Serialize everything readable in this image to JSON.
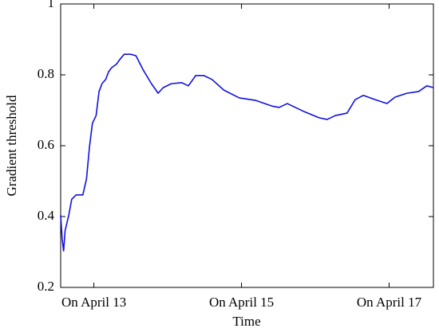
{
  "chart_data": {
    "type": "line",
    "x_label": "Time",
    "y_label": "Gradient threshold",
    "xlim": [
      12.55,
      17.6
    ],
    "xticks": [
      {
        "value": 13,
        "label": "On April 13"
      },
      {
        "value": 15,
        "label": "On April 15"
      },
      {
        "value": 17,
        "label": "On April 17"
      }
    ],
    "ylim": [
      0.2,
      1
    ],
    "yticks": [
      0.2,
      0.4,
      0.6,
      0.8,
      1
    ],
    "grid": false,
    "x": [
      12.55,
      12.57,
      12.59,
      12.61,
      12.66,
      12.7,
      12.76,
      12.81,
      12.85,
      12.9,
      12.94,
      12.98,
      13.03,
      13.07,
      13.11,
      13.16,
      13.2,
      13.24,
      13.31,
      13.35,
      13.41,
      13.5,
      13.57,
      13.67,
      13.78,
      13.87,
      13.94,
      14.05,
      14.19,
      14.28,
      14.38,
      14.49,
      14.6,
      14.76,
      14.97,
      15.19,
      15.41,
      15.51,
      15.62,
      15.84,
      16.05,
      16.16,
      16.27,
      16.43,
      16.54,
      16.65,
      16.81,
      16.97,
      17.08,
      17.24,
      17.4,
      17.51,
      17.6
    ],
    "series": [
      {
        "color": "#1010e0",
        "values": [
          0.404,
          0.337,
          0.303,
          0.36,
          0.404,
          0.449,
          0.461,
          0.461,
          0.461,
          0.506,
          0.596,
          0.663,
          0.685,
          0.753,
          0.775,
          0.787,
          0.809,
          0.82,
          0.831,
          0.843,
          0.858,
          0.858,
          0.854,
          0.813,
          0.775,
          0.748,
          0.764,
          0.775,
          0.778,
          0.769,
          0.798,
          0.798,
          0.787,
          0.757,
          0.735,
          0.728,
          0.712,
          0.708,
          0.719,
          0.697,
          0.679,
          0.674,
          0.685,
          0.692,
          0.73,
          0.742,
          0.73,
          0.719,
          0.737,
          0.748,
          0.753,
          0.769,
          0.764
        ]
      }
    ]
  }
}
